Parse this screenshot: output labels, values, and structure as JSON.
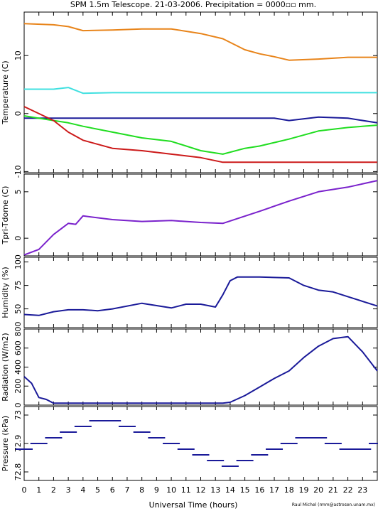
{
  "title": "SPM 1.5m Telescope. 21-03-2006. Precipitation = 0000▫▫ mm.",
  "xlabel": "Universal Time (hours)",
  "credit": "Raul Michel (rmm@astrosen.unam.mx)",
  "chart_data": [
    {
      "type": "line",
      "ylabel": "Temperature (C)",
      "ylim": [
        -10.2,
        17.5
      ],
      "yticks": [
        -10,
        0,
        10
      ],
      "x": [
        0,
        2,
        3,
        4,
        6,
        8,
        10,
        12,
        13.5,
        15,
        16,
        17,
        18,
        20,
        22,
        24
      ],
      "series": [
        {
          "color": "#e8841a",
          "values": [
            15.5,
            15.3,
            15.0,
            14.3,
            14.4,
            14.6,
            14.6,
            13.8,
            12.9,
            11.0,
            10.3,
            9.8,
            9.2,
            9.4,
            9.7,
            9.7
          ]
        },
        {
          "color": "#40e0e0",
          "values": [
            4.2,
            4.2,
            4.5,
            3.5,
            3.6,
            3.6,
            3.6,
            3.6,
            3.6,
            3.6,
            3.6,
            3.6,
            3.6,
            3.6,
            3.6,
            3.6
          ]
        },
        {
          "color": "#1a1a99",
          "values": [
            -0.8,
            -0.8,
            -0.8,
            -0.8,
            -0.8,
            -0.8,
            -0.8,
            -0.8,
            -0.8,
            -0.8,
            -0.8,
            -0.8,
            -1.2,
            -0.6,
            -0.8,
            -1.6
          ]
        },
        {
          "color": "#20dd20",
          "values": [
            -0.4,
            -1.2,
            -1.6,
            -2.2,
            -3.2,
            -4.2,
            -4.8,
            -6.4,
            -7.0,
            -6.0,
            -5.6,
            -5.0,
            -4.4,
            -3.0,
            -2.4,
            -2.0
          ]
        },
        {
          "color": "#cc1a1a",
          "values": [
            1.2,
            -1.2,
            -3.2,
            -4.6,
            -6.0,
            -6.4,
            -7.0,
            -7.6,
            -8.4,
            -8.4,
            -8.4,
            -8.4,
            -8.4,
            -8.4,
            -8.4,
            -8.4
          ]
        }
      ]
    },
    {
      "type": "line",
      "ylabel": "Tpri-Tdome (C)",
      "ylim": [
        -1.9,
        6.9
      ],
      "yticks": [
        0,
        5
      ],
      "x": [
        0,
        1,
        2,
        3,
        3.5,
        4,
        6,
        8,
        10,
        12,
        13.5,
        16,
        18,
        20,
        22,
        24
      ],
      "series": [
        {
          "color": "#7a22cc",
          "values": [
            -1.8,
            -1.2,
            0.4,
            1.6,
            1.5,
            2.4,
            2.0,
            1.8,
            1.9,
            1.7,
            1.6,
            2.9,
            4.0,
            5.0,
            5.5,
            6.2
          ]
        }
      ]
    },
    {
      "type": "line",
      "ylabel": "Humidity (%)",
      "ylim": [
        30,
        105
      ],
      "yticks": [
        25,
        50,
        75,
        100
      ],
      "x": [
        0,
        1,
        2,
        3,
        4,
        5,
        6,
        8,
        10,
        11,
        12,
        13,
        13.5,
        14,
        14.5,
        16,
        18,
        19,
        20,
        21,
        22,
        24
      ],
      "series": [
        {
          "color": "#1a1a99",
          "values": [
            44,
            43,
            47,
            49,
            49,
            48,
            50,
            56,
            51,
            55,
            55,
            52,
            65,
            80,
            84,
            84,
            83,
            75,
            70,
            68,
            63,
            53
          ]
        }
      ]
    },
    {
      "type": "line",
      "ylabel": "Radiation (W/m2)",
      "ylim": [
        0,
        800
      ],
      "yticks": [
        0,
        200,
        400,
        600,
        800
      ],
      "x": [
        0,
        0.5,
        1,
        1.5,
        2,
        3,
        4,
        8,
        12,
        13.5,
        14,
        15,
        16,
        17,
        18,
        19,
        20,
        21,
        22,
        23,
        24
      ],
      "series": [
        {
          "color": "#1a1a99",
          "values": [
            300,
            230,
            80,
            60,
            20,
            20,
            20,
            20,
            20,
            20,
            30,
            100,
            190,
            280,
            360,
            500,
            620,
            700,
            720,
            560,
            360
          ]
        }
      ]
    },
    {
      "type": "scatter",
      "ylabel": "Pressure (kPa)",
      "ylim": [
        72.77,
        73.03
      ],
      "yticks": [
        72.8,
        72.9,
        73
      ],
      "x": [
        0,
        1,
        2,
        3,
        4,
        5,
        6,
        7,
        8,
        9,
        10,
        11,
        12,
        13,
        14,
        15,
        16,
        17,
        18,
        19,
        20,
        21,
        22,
        23,
        24
      ],
      "series": [
        {
          "color": "#1a1a99",
          "values": [
            72.88,
            72.9,
            72.92,
            72.94,
            72.96,
            72.98,
            72.98,
            72.96,
            72.94,
            72.92,
            72.9,
            72.88,
            72.86,
            72.84,
            72.82,
            72.84,
            72.86,
            72.88,
            72.9,
            72.92,
            72.92,
            72.9,
            72.88,
            72.88,
            72.9
          ]
        }
      ]
    }
  ],
  "xaxis": {
    "range": [
      0,
      24
    ],
    "ticks": [
      0,
      1,
      2,
      3,
      4,
      5,
      6,
      7,
      8,
      9,
      10,
      11,
      12,
      13,
      14,
      15,
      16,
      17,
      18,
      19,
      20,
      21,
      22,
      23
    ]
  }
}
